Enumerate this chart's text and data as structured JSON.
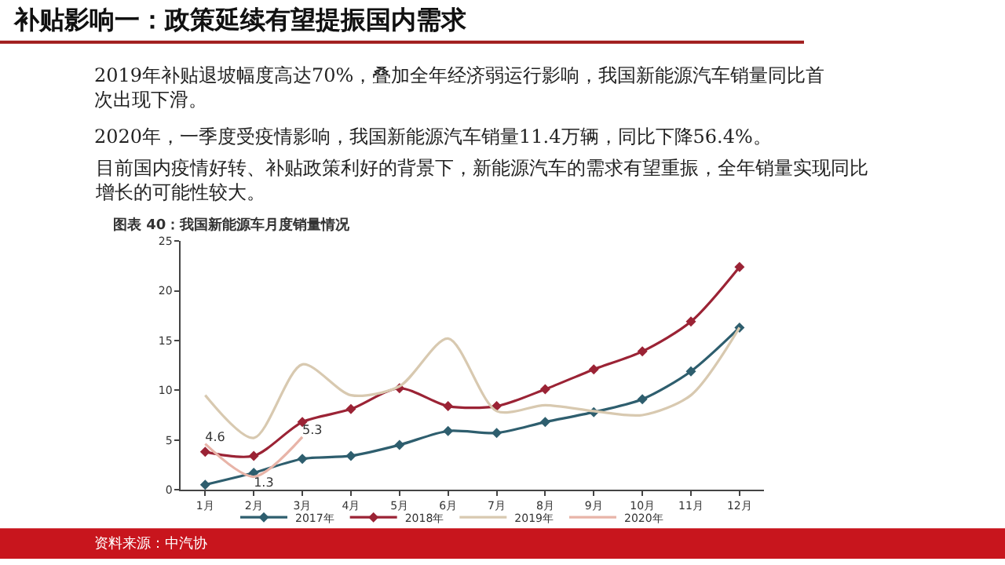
{
  "chart_data": {
    "type": "line",
    "title": "补贴影响一：政策延续有望提振国内需求",
    "subtitle": "图表 40：我国新能源车月度销量情况",
    "annotations": [
      "2019年补贴退坡幅度高达70%，叠加全年经济弱运行影响，我国新能源汽车销量同比首次出现下滑。",
      "2020年，一季度受疫情影响，我国新能源汽车销量11.4万辆，同比下降56.4%。",
      "目前国内疫情好转、补贴政策利好的背景下，新能源汽车的需求有望重振，全年销量实现同比增长的可能性较大。",
      "资料来源：中汽协"
    ],
    "categories": [
      "1月",
      "2月",
      "3月",
      "4月",
      "5月",
      "6月",
      "7月",
      "8月",
      "9月",
      "10月",
      "11月",
      "12月"
    ],
    "series": [
      {
        "name": "2017年",
        "color": "#2e5e6e",
        "marker": "diamond",
        "values": [
          0.5,
          1.7,
          3.1,
          3.4,
          4.5,
          5.9,
          5.7,
          6.8,
          7.8,
          9.1,
          11.9,
          16.3
        ]
      },
      {
        "name": "2018年",
        "color": "#9b2335",
        "marker": "diamond",
        "values": [
          3.8,
          3.4,
          6.8,
          8.1,
          10.2,
          8.4,
          8.4,
          10.1,
          12.1,
          13.9,
          16.9,
          22.4
        ]
      },
      {
        "name": "2019年",
        "color": "#d8c9b0",
        "marker": "none",
        "values": [
          9.5,
          5.2,
          12.6,
          9.5,
          10.4,
          15.2,
          7.9,
          8.5,
          7.9,
          7.5,
          9.5,
          16.3
        ]
      },
      {
        "name": "2020年",
        "color": "#e8b4a8",
        "marker": "none",
        "values": [
          4.6,
          1.3,
          5.3,
          null,
          null,
          null,
          null,
          null,
          null,
          null,
          null,
          null
        ],
        "value_labels": [
          "4.6",
          "1.3",
          "5.3",
          null,
          null,
          null,
          null,
          null,
          null,
          null,
          null,
          null
        ]
      }
    ],
    "ylim": [
      0,
      25
    ],
    "yticks": [
      0,
      5,
      10,
      15,
      20,
      25
    ],
    "legend": "bottom",
    "line_style": "solid"
  }
}
